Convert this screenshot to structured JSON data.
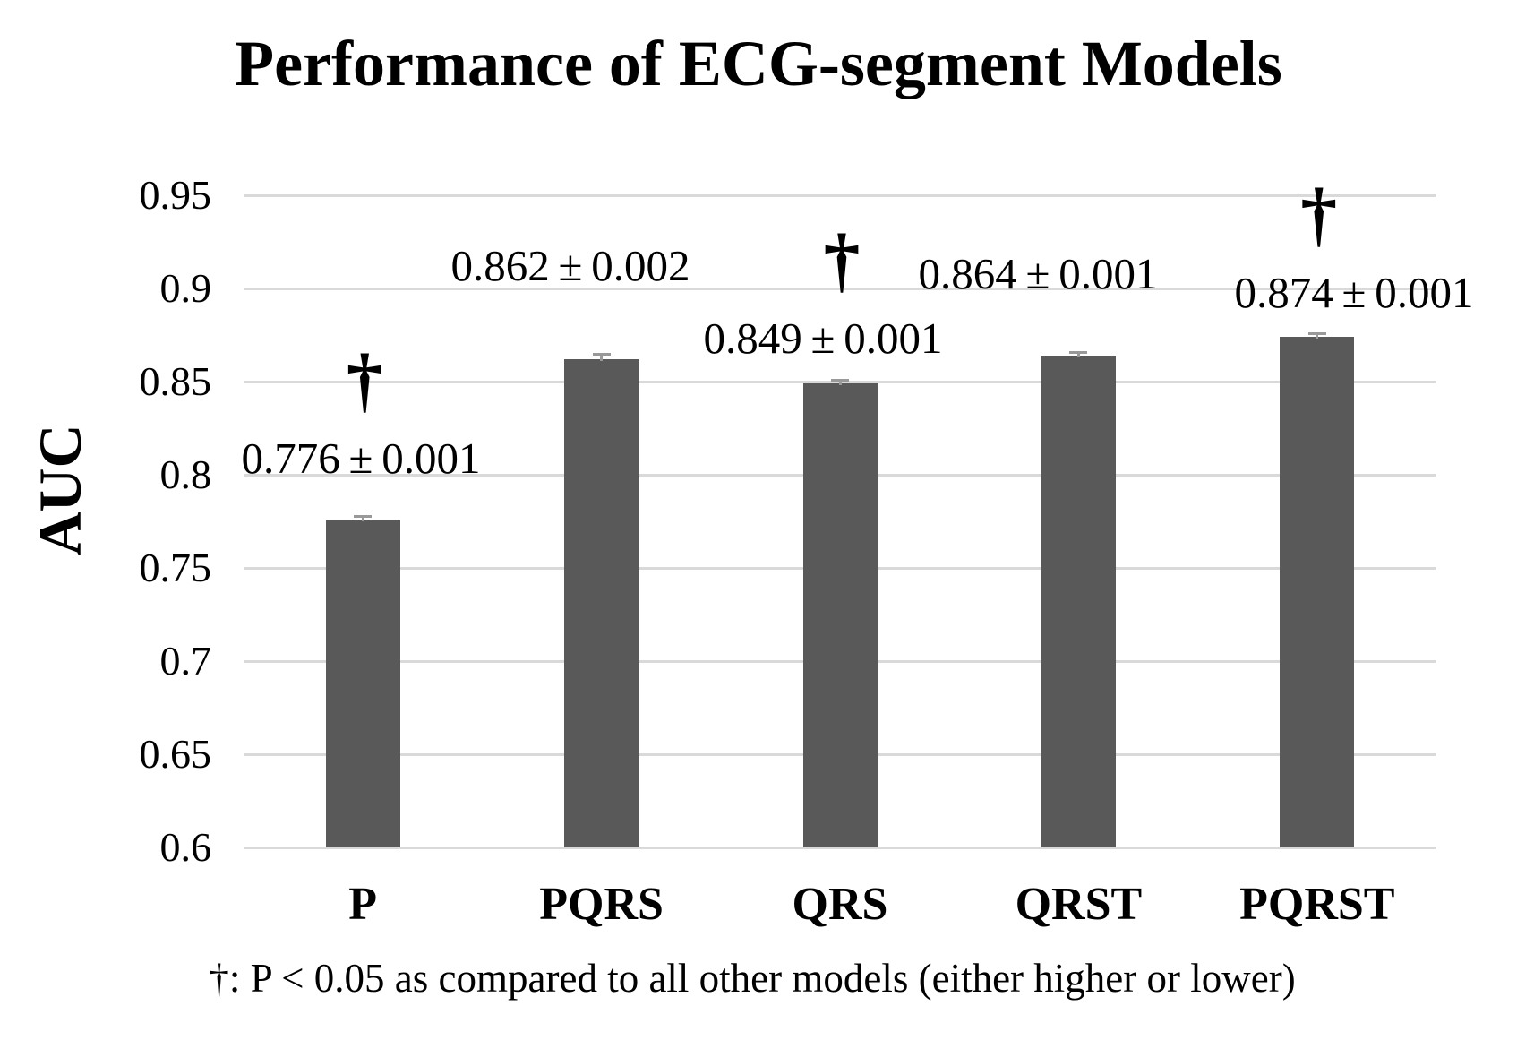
{
  "chart_data": {
    "type": "bar",
    "title": "Performance of ECG-segment Models",
    "ylabel": "AUC",
    "xlabel": "",
    "categories": [
      "P",
      "PQRS",
      "QRS",
      "QRST",
      "PQRST"
    ],
    "values": [
      0.776,
      0.862,
      0.849,
      0.864,
      0.874
    ],
    "errors": [
      0.001,
      0.002,
      0.001,
      0.001,
      0.001
    ],
    "value_labels": [
      "0.776 ± 0.001",
      "0.862 ± 0.002",
      "0.849 ± 0.001",
      "0.864 ± 0.001",
      "0.874 ± 0.001"
    ],
    "significant": [
      true,
      false,
      true,
      false,
      true
    ],
    "significance_marker": "†",
    "ylim": [
      0.6,
      0.95
    ],
    "ytick_labels": [
      "0.95",
      "0.9",
      "0.85",
      "0.8",
      "0.75",
      "0.7",
      "0.65",
      "0.6"
    ],
    "grid": true,
    "legend": false,
    "footnote": "†: P < 0.05 as compared to all other models (either higher or lower)",
    "colors": {
      "bar": "#595959",
      "error_bar": "#999999",
      "gridline": "#d9d9d9",
      "text": "#000000",
      "background": "#ffffff"
    }
  }
}
